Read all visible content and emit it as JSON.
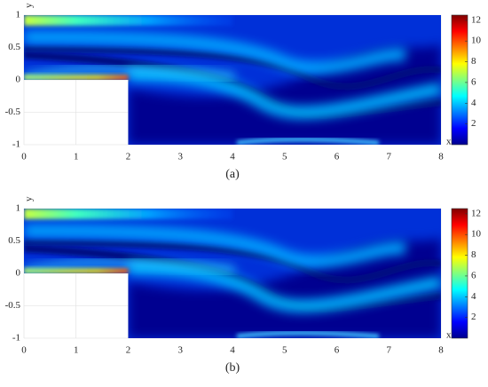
{
  "chart_data": [
    {
      "type": "heatmap",
      "title": "(a)",
      "xlabel": "x",
      "ylabel": "y",
      "xlim": [
        0,
        8
      ],
      "ylim": [
        -1,
        1
      ],
      "xticks": [
        0,
        1,
        2,
        3,
        4,
        5,
        6,
        7,
        8
      ],
      "yticks": [
        -1,
        -0.5,
        0,
        0.5,
        1
      ],
      "grid": true,
      "colorbar": {
        "colormap": "jet",
        "clim": [
          0,
          12.5
        ],
        "ticks": [
          2,
          4,
          6,
          8,
          10,
          12
        ]
      }
    },
    {
      "type": "heatmap",
      "title": "(b)",
      "xlabel": "x",
      "ylabel": "y",
      "xlim": [
        0,
        8
      ],
      "ylim": [
        -1,
        1
      ],
      "xticks": [
        0,
        1,
        2,
        3,
        4,
        5,
        6,
        7,
        8
      ],
      "yticks": [
        -1,
        -0.5,
        0,
        0.5,
        1
      ],
      "grid": true,
      "colorbar": {
        "colormap": "jet",
        "clim": [
          0,
          12.5
        ],
        "ticks": [
          2,
          4,
          6,
          8,
          10,
          12
        ]
      }
    }
  ]
}
